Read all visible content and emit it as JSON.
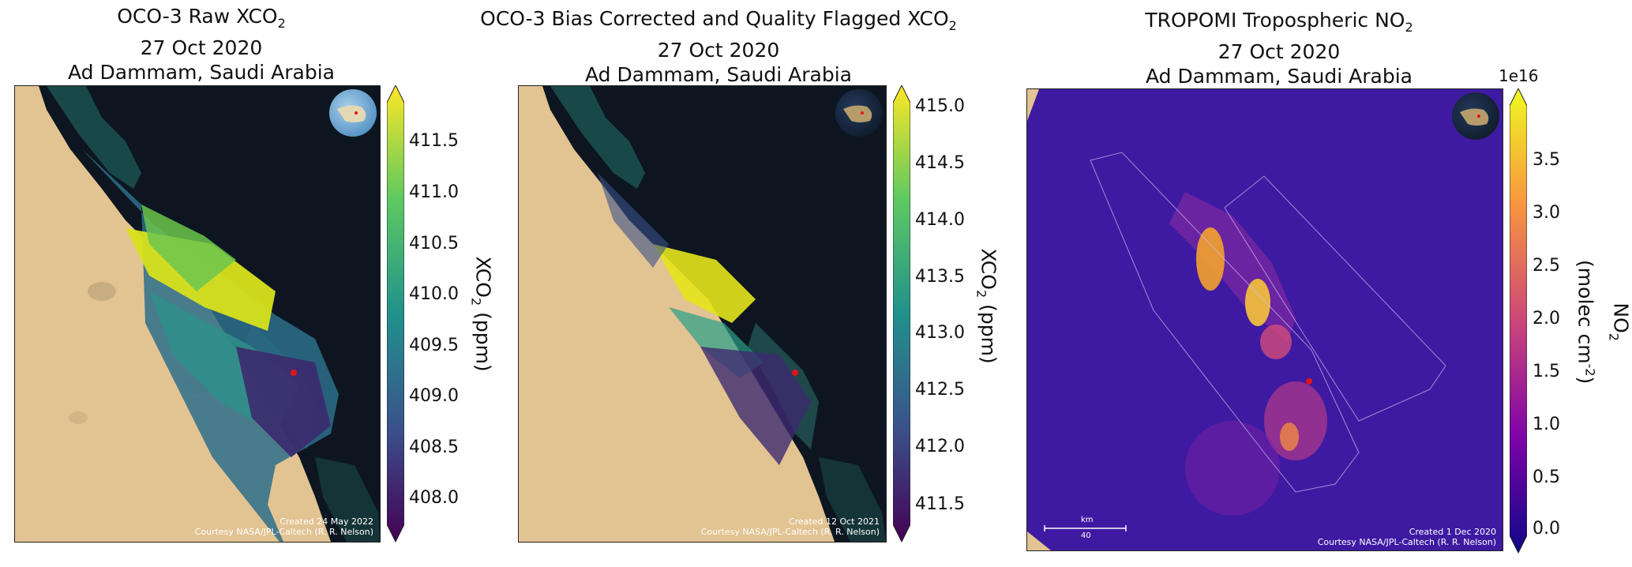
{
  "panels": [
    {
      "title_line1": "OCO-3 Raw XCO",
      "title_sub1": "2",
      "title_line2": "27 Oct 2020",
      "title_line3": "Ad Dammam, Saudi Arabia",
      "colorbar": {
        "ticks": [
          "411.5",
          "411.0",
          "410.5",
          "410.0",
          "409.5",
          "409.0",
          "408.5",
          "408.0"
        ],
        "label": "XCO",
        "label_sub": "2",
        "label_unit": " (ppm)",
        "colormap": "viridis"
      },
      "credit_line1": "Created 24 May 2022",
      "credit_line2": "Courtesy NASA/JPL-Caltech (R. R. Nelson)"
    },
    {
      "title_line1": "OCO-3 Bias Corrected and Quality Flagged XCO",
      "title_sub1": "2",
      "title_line2": "27 Oct 2020",
      "title_line3": "Ad Dammam, Saudi Arabia",
      "colorbar": {
        "ticks": [
          "415.0",
          "414.5",
          "414.0",
          "413.5",
          "413.0",
          "412.5",
          "412.0",
          "411.5"
        ],
        "label": "XCO",
        "label_sub": "2",
        "label_unit": " (ppm)",
        "colormap": "viridis"
      },
      "credit_line1": "Created 12 Oct 2021",
      "credit_line2": "Courtesy NASA/JPL-Caltech (R. R. Nelson)"
    },
    {
      "title_line1": "TROPOMI Tropospheric NO",
      "title_sub1": "2",
      "title_line2": "27 Oct 2020",
      "title_line3": "Ad Dammam, Saudi Arabia",
      "colorbar": {
        "exponent": "1e16",
        "ticks": [
          "3.5",
          "3.0",
          "2.5",
          "2.0",
          "1.5",
          "1.0",
          "0.5",
          "0.0"
        ],
        "label": "NO",
        "label_sub": "2",
        "label_line2": "(molec cm",
        "label_sup": "-2",
        "label_line2_end": ")",
        "colormap": "plasma"
      },
      "scale_unit": "km",
      "scale_value": "40",
      "credit_line1": "Created 1 Dec 2020",
      "credit_line2": "Courtesy NASA/JPL-Caltech (R. R. Nelson)"
    }
  ],
  "colors": {
    "desert": "#e3c393",
    "water": "#0d1620",
    "no2_bg": "#3e1aa2",
    "site_marker": "#e0141c"
  }
}
